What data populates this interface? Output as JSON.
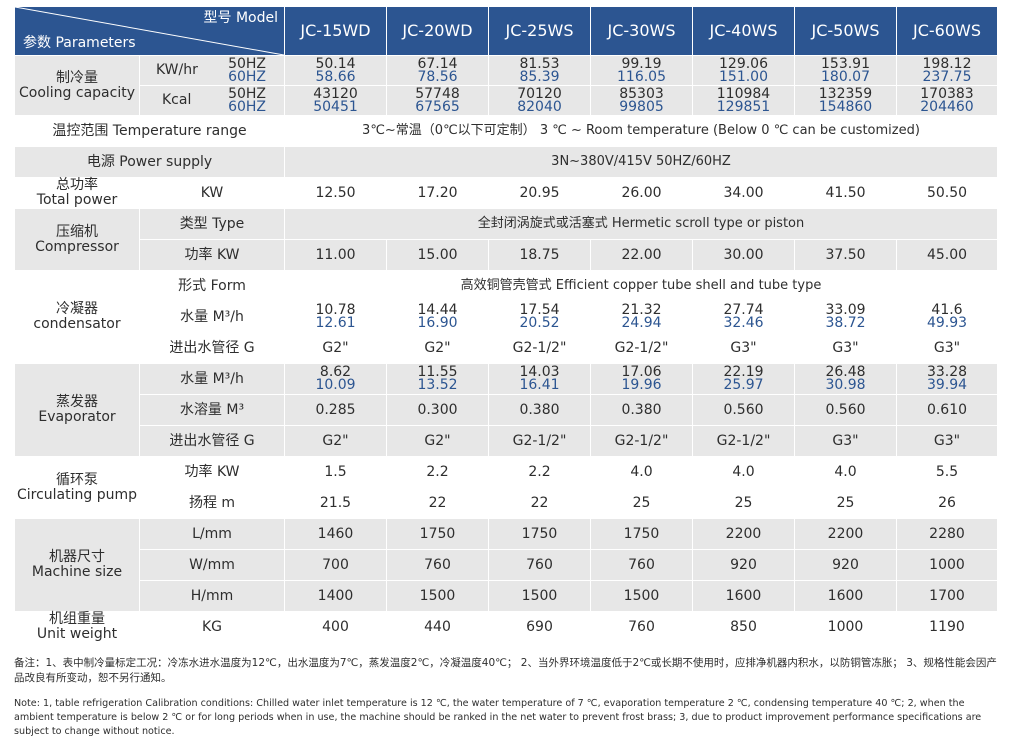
{
  "header": {
    "model_label": "型号 Model",
    "params_label": "参数 Parameters",
    "models": [
      "JC-15WD",
      "JC-20WD",
      "JC-25WS",
      "JC-30WS",
      "JC-40WS",
      "JC-50WS",
      "JC-60WS"
    ]
  },
  "cooling": {
    "label_cn": "制冷量",
    "label_en": "Cooling capacity",
    "unit_kw": "KW/hr",
    "unit_kcal": "Kcal",
    "hz50": "50HZ",
    "hz60": "60HZ",
    "kw_50": [
      "50.14",
      "67.14",
      "81.53",
      "99.19",
      "129.06",
      "153.91",
      "198.12"
    ],
    "kw_60": [
      "58.66",
      "78.56",
      "85.39",
      "116.05",
      "151.00",
      "180.07",
      "237.75"
    ],
    "kcal_50": [
      "43120",
      "57748",
      "70120",
      "85303",
      "110984",
      "132359",
      "170383"
    ],
    "kcal_60": [
      "50451",
      "67565",
      "82040",
      "99805",
      "129851",
      "154860",
      "204460"
    ]
  },
  "temp_range": {
    "label": "温控范围 Temperature range",
    "value": "3℃~常温（0℃以下可定制） 3 ℃ ~ Room temperature (Below 0 ℃ can be customized)"
  },
  "power_supply": {
    "label": "电源 Power supply",
    "value": "3N~380V/415V 50HZ/60HZ"
  },
  "total_power": {
    "label_cn": "总功率",
    "label_en": "Total power",
    "unit": "KW",
    "values": [
      "12.50",
      "17.20",
      "20.95",
      "26.00",
      "34.00",
      "41.50",
      "50.50"
    ]
  },
  "compressor": {
    "label_cn": "压缩机",
    "label_en": "Compressor",
    "type_label": "类型 Type",
    "type_value": "全封闭涡旋式或活塞式 Hermetic scroll type or piston",
    "power_label": "功率 KW",
    "power_values": [
      "11.00",
      "15.00",
      "18.75",
      "22.00",
      "30.00",
      "37.50",
      "45.00"
    ]
  },
  "condenser": {
    "label_cn": "冷凝器",
    "label_en": "condensator",
    "form_label": "形式 Form",
    "form_value": "高效铜管壳管式 Efficient copper tube shell and tube type",
    "flow_label": "水量 M³/h",
    "flow_50": [
      "10.78",
      "14.44",
      "17.54",
      "21.32",
      "27.74",
      "33.09",
      "41.6"
    ],
    "flow_60": [
      "12.61",
      "16.90",
      "20.52",
      "24.94",
      "32.46",
      "38.72",
      "49.93"
    ],
    "pipe_label": "进出水管径 G",
    "pipe_values": [
      "G2\"",
      "G2\"",
      "G2-1/2\"",
      "G2-1/2\"",
      "G3\"",
      "G3\"",
      "G3\""
    ]
  },
  "evaporator": {
    "label_cn": "蒸发器",
    "label_en": "Evaporator",
    "flow_label": "水量 M³/h",
    "flow_50": [
      "8.62",
      "11.55",
      "14.03",
      "17.06",
      "22.19",
      "26.48",
      "33.28"
    ],
    "flow_60": [
      "10.09",
      "13.52",
      "16.41",
      "19.96",
      "25.97",
      "30.98",
      "39.94"
    ],
    "volume_label": "水溶量 M³",
    "volume_values": [
      "0.285",
      "0.300",
      "0.380",
      "0.380",
      "0.560",
      "0.560",
      "0.610"
    ],
    "pipe_label": "进出水管径 G",
    "pipe_values": [
      "G2\"",
      "G2\"",
      "G2-1/2\"",
      "G2-1/2\"",
      "G2-1/2\"",
      "G3\"",
      "G3\""
    ]
  },
  "pump": {
    "label_cn": "循环泵",
    "label_en": "Circulating pump",
    "power_label": "功率 KW",
    "power_values": [
      "1.5",
      "2.2",
      "2.2",
      "4.0",
      "4.0",
      "4.0",
      "5.5"
    ],
    "head_label": "扬程 m",
    "head_values": [
      "21.5",
      "22",
      "22",
      "25",
      "25",
      "25",
      "26"
    ]
  },
  "size": {
    "label_cn": "机器尺寸",
    "label_en": "Machine size",
    "l_label": "L/mm",
    "l_values": [
      "1460",
      "1750",
      "1750",
      "1750",
      "2200",
      "2200",
      "2280"
    ],
    "w_label": "W/mm",
    "w_values": [
      "700",
      "760",
      "760",
      "760",
      "920",
      "920",
      "1000"
    ],
    "h_label": "H/mm",
    "h_values": [
      "1400",
      "1500",
      "1500",
      "1500",
      "1600",
      "1600",
      "1700"
    ]
  },
  "weight": {
    "label_cn": "机组重量",
    "label_en": "Unit weight",
    "unit": "KG",
    "values": [
      "400",
      "440",
      "690",
      "760",
      "850",
      "1000",
      "1190"
    ]
  },
  "notes": {
    "cn": "备注：1、表中制冷量标定工况：冷冻水进水温度为12℃，出水温度为7℃，蒸发温度2℃，冷凝温度40℃； 2、当外界环境温度低于2℃或长期不使用时，应排净机器内积水，以防铜管冻胀； 3、规格性能会因产品改良有所变动，恕不另行通知。",
    "en": "Note: 1, table refrigeration Calibration conditions: Chilled water inlet temperature is 12 ℃, the water temperature of 7 ℃, evaporation temperature 2 ℃, condensing temperature 40 ℃; 2, when the ambient temperature is below 2 ℃ or for long periods when in use, the machine should be ranked in the net water to prevent frost brass; 3, due to product improvement performance specifications are subject to change without notice."
  },
  "colors": {
    "header_blue": "#2c5591",
    "row_gray": "#e7e7e7",
    "value_blue": "#2c5591"
  }
}
